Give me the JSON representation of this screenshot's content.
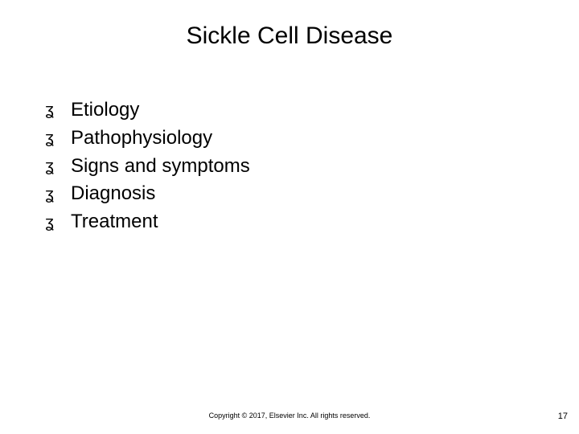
{
  "title": "Sickle Cell Disease",
  "bullets": [
    "Etiology",
    "Pathophysiology",
    "Signs and symptoms",
    "Diagnosis",
    "Treatment"
  ],
  "bullet_glyph": "ʓ",
  "footer": "Copyright © 2017, Elsevier Inc. All rights reserved.",
  "page_number": "17",
  "style": {
    "background_color": "#ffffff",
    "text_color": "#000000",
    "title_fontsize": 30,
    "bullet_fontsize": 24,
    "footer_fontsize": 9,
    "pagenum_fontsize": 11
  }
}
